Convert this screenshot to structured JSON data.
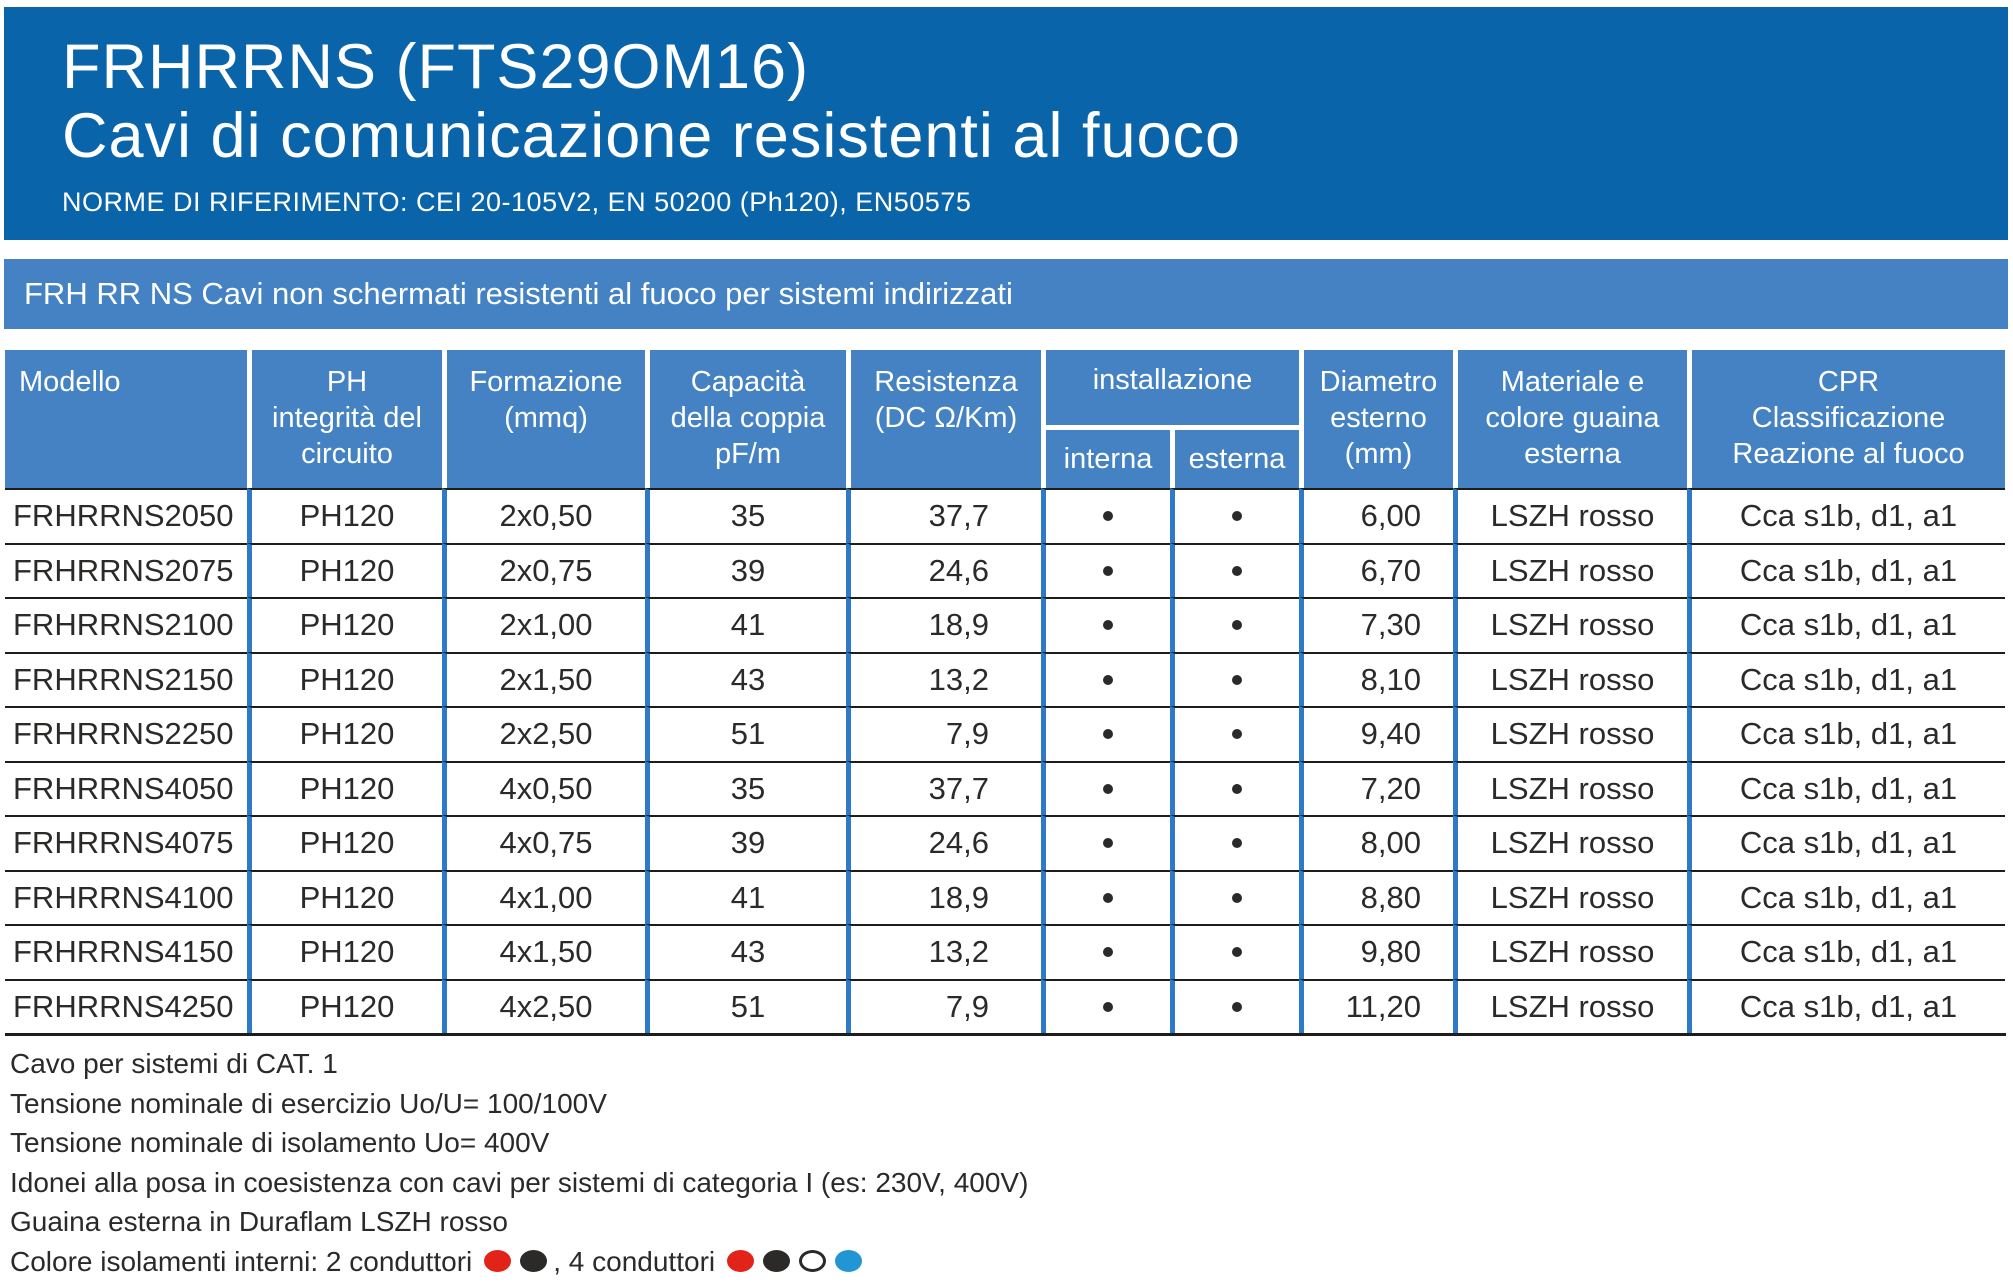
{
  "header": {
    "title_line1": "FRHRRNS (FTS29OM16)",
    "title_line2": "Cavi di comunicazione resistenti al fuoco",
    "norms": "NORME DI RIFERIMENTO: CEI 20-105V2, EN 50200 (Ph120), EN50575"
  },
  "banner": {
    "text": "FRH RR NS Cavi non schermati resistenti al fuoco per sistemi indirizzati"
  },
  "table": {
    "headers": {
      "modello": "Modello",
      "ph": "PH\nintegrità del\ncircuito",
      "formazione": "Formazione\n(mmq)",
      "capacita": "Capacità\ndella coppia\npF/m",
      "resistenza": "Resistenza\n(DC Ω/Km)",
      "installazione": "installazione",
      "interna": "interna",
      "esterna": "esterna",
      "diametro": "Diametro\nesterno\n(mm)",
      "materiale": "Materiale e\ncolore guaina\nesterna",
      "cpr": "CPR\nClassificazione\nReazione al fuoco"
    },
    "rows": [
      {
        "modello": "FRHRRNS2050",
        "ph": "PH120",
        "formazione": "2x0,50",
        "capacita": "35",
        "resistenza": "37,7",
        "interna": true,
        "esterna": true,
        "diametro": "6,00",
        "materiale": "LSZH rosso",
        "cpr": "Cca s1b, d1, a1"
      },
      {
        "modello": "FRHRRNS2075",
        "ph": "PH120",
        "formazione": "2x0,75",
        "capacita": "39",
        "resistenza": "24,6",
        "interna": true,
        "esterna": true,
        "diametro": "6,70",
        "materiale": "LSZH rosso",
        "cpr": "Cca s1b, d1, a1"
      },
      {
        "modello": "FRHRRNS2100",
        "ph": "PH120",
        "formazione": "2x1,00",
        "capacita": "41",
        "resistenza": "18,9",
        "interna": true,
        "esterna": true,
        "diametro": "7,30",
        "materiale": "LSZH rosso",
        "cpr": "Cca s1b, d1, a1"
      },
      {
        "modello": "FRHRRNS2150",
        "ph": "PH120",
        "formazione": "2x1,50",
        "capacita": "43",
        "resistenza": "13,2",
        "interna": true,
        "esterna": true,
        "diametro": "8,10",
        "materiale": "LSZH rosso",
        "cpr": "Cca s1b, d1, a1"
      },
      {
        "modello": "FRHRRNS2250",
        "ph": "PH120",
        "formazione": "2x2,50",
        "capacita": "51",
        "resistenza": "7,9",
        "interna": true,
        "esterna": true,
        "diametro": "9,40",
        "materiale": "LSZH rosso",
        "cpr": "Cca s1b, d1, a1"
      },
      {
        "modello": "FRHRRNS4050",
        "ph": "PH120",
        "formazione": "4x0,50",
        "capacita": "35",
        "resistenza": "37,7",
        "interna": true,
        "esterna": true,
        "diametro": "7,20",
        "materiale": "LSZH rosso",
        "cpr": "Cca s1b, d1, a1"
      },
      {
        "modello": "FRHRRNS4075",
        "ph": "PH120",
        "formazione": "4x0,75",
        "capacita": "39",
        "resistenza": "24,6",
        "interna": true,
        "esterna": true,
        "diametro": "8,00",
        "materiale": "LSZH rosso",
        "cpr": "Cca s1b, d1, a1"
      },
      {
        "modello": "FRHRRNS4100",
        "ph": "PH120",
        "formazione": "4x1,00",
        "capacita": "41",
        "resistenza": "18,9",
        "interna": true,
        "esterna": true,
        "diametro": "8,80",
        "materiale": "LSZH rosso",
        "cpr": "Cca s1b, d1, a1"
      },
      {
        "modello": "FRHRRNS4150",
        "ph": "PH120",
        "formazione": "4x1,50",
        "capacita": "43",
        "resistenza": "13,2",
        "interna": true,
        "esterna": true,
        "diametro": "9,80",
        "materiale": "LSZH rosso",
        "cpr": "Cca s1b, d1, a1"
      },
      {
        "modello": "FRHRRNS4250",
        "ph": "PH120",
        "formazione": "4x2,50",
        "capacita": "51",
        "resistenza": "7,9",
        "interna": true,
        "esterna": true,
        "diametro": "11,20",
        "materiale": "LSZH rosso",
        "cpr": "Cca s1b, d1, a1"
      }
    ]
  },
  "notes": {
    "lines": [
      "Cavo per sistemi di CAT. 1",
      "Tensione nominale di esercizio Uo/U= 100/100V",
      "Tensione nominale di isolamento Uo= 400V",
      "Idonei alla posa in coesistenza con cavi per sistemi di categoria I (es: 230V, 400V)",
      "Guaina esterna in Duraflam LSZH rosso"
    ]
  },
  "colors_line": {
    "prefix": "Colore isolamenti interni: 2 conduttori",
    "mid": ", 4 conduttori",
    "two_conductors": [
      "red",
      "black"
    ],
    "four_conductors": [
      "red",
      "black",
      "white",
      "blue"
    ]
  },
  "palette": {
    "header_blue": "#0a64a9",
    "band_blue": "#4482c3",
    "separator_blue": "#2e7ac8",
    "line_black": "#1d1d1b",
    "ink": "#2b2a29",
    "dot_red": "#e2231a",
    "dot_black": "#2b2a29",
    "dot_white": "#ffffff",
    "dot_blue": "#2296d4"
  }
}
